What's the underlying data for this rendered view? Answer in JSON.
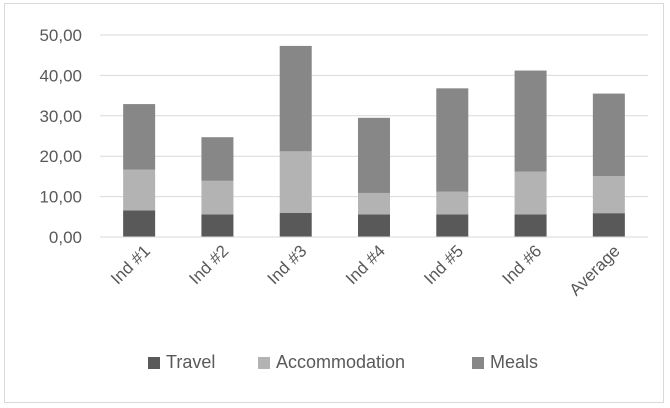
{
  "chart_data": {
    "type": "bar",
    "stacked": true,
    "title": "",
    "xlabel": "",
    "ylabel": "",
    "categories": [
      "Ind #1",
      "Ind #2",
      "Ind #3",
      "Ind #4",
      "Ind #5",
      "Ind #6",
      "Average"
    ],
    "series": [
      {
        "name": "Travel",
        "color": "#595959",
        "values": [
          6.6,
          5.6,
          6.0,
          5.6,
          5.6,
          5.6,
          5.9
        ]
      },
      {
        "name": "Accommodation",
        "color": "#b3b3b3",
        "values": [
          10.1,
          8.3,
          15.2,
          5.3,
          5.6,
          10.6,
          9.2
        ]
      },
      {
        "name": "Meals",
        "color": "#878787",
        "values": [
          16.2,
          10.8,
          26.1,
          18.6,
          25.6,
          25.0,
          20.4
        ]
      }
    ],
    "ylim": [
      0,
      50
    ],
    "yticks": [
      "0,00",
      "10,00",
      "20,00",
      "30,00",
      "40,00",
      "50,00"
    ],
    "grid": true,
    "legend_position": "bottom"
  }
}
